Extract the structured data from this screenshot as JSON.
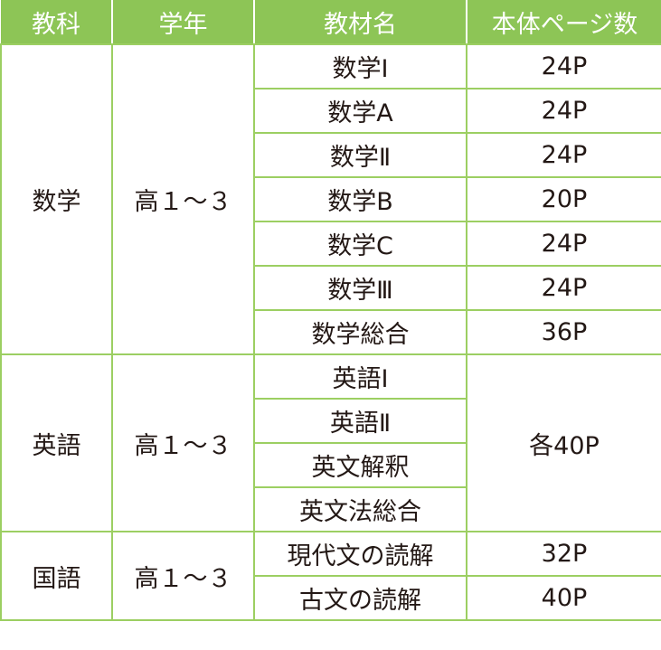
{
  "header": [
    "教科",
    "学年",
    "教材名",
    "本体ページ数"
  ],
  "groups": [
    {
      "subject": "数学",
      "grade": "高１～３",
      "items": [
        {
          "name": "数学Ⅰ",
          "pages": "24P"
        },
        {
          "name": "数学A",
          "pages": "24P"
        },
        {
          "name": "数学Ⅱ",
          "pages": "24P"
        },
        {
          "name": "数学B",
          "pages": "20P"
        },
        {
          "name": "数学C",
          "pages": "24P"
        },
        {
          "name": "数学Ⅲ",
          "pages": "24P"
        },
        {
          "name": "数学総合",
          "pages": "36P"
        }
      ]
    },
    {
      "subject": "英語",
      "grade": "高１～３",
      "shared_pages": "各40P",
      "items": [
        {
          "name": "英語Ⅰ"
        },
        {
          "name": "英語Ⅱ"
        },
        {
          "name": "英文解釈"
        },
        {
          "name": "英文法総合"
        }
      ]
    },
    {
      "subject": "国語",
      "grade": "高１～３",
      "items": [
        {
          "name": "現代文の読解",
          "pages": "32P"
        },
        {
          "name": "古文の読解",
          "pages": "40P"
        }
      ]
    }
  ],
  "colors": {
    "header_bg": "#8dc556",
    "border": "#9ccf62",
    "text": "#231815"
  }
}
